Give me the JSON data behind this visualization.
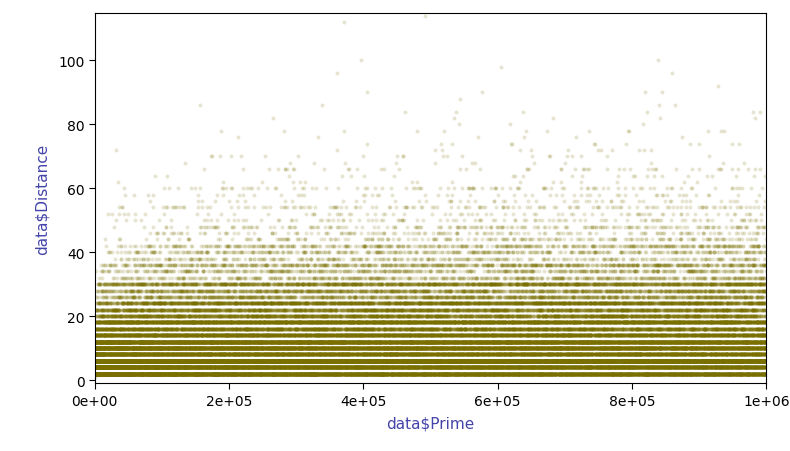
{
  "title": "",
  "xlabel": "data$Prime",
  "ylabel": "data$Distance",
  "xlim": [
    0,
    1000000
  ],
  "ylim": [
    -1,
    115
  ],
  "yticks": [
    0,
    20,
    40,
    60,
    80,
    100
  ],
  "xtick_labels": [
    "0e+00",
    "2e+05",
    "4e+05",
    "6e+05",
    "8e+05",
    "1e+06"
  ],
  "xtick_values": [
    0,
    200000,
    400000,
    600000,
    800000,
    1000000
  ],
  "point_color": "#7a7000",
  "alpha": 0.18,
  "marker_size": 8,
  "bg_color": "#ffffff",
  "label_color": "#4444aa",
  "tick_color": "#4444aa",
  "font_family": "sans-serif"
}
